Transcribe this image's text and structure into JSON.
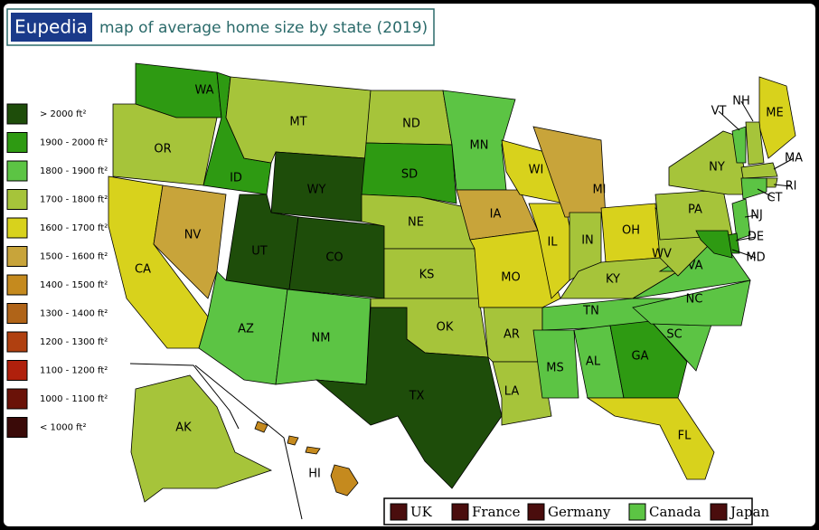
{
  "title": {
    "brand": "Eupedia",
    "text": "map of average home size by state (2019)"
  },
  "legend": [
    {
      "label": "> 2000 ft²",
      "color": "#1e4d0a"
    },
    {
      "label": "1900 - 2000 ft²",
      "color": "#2e9a12"
    },
    {
      "label": "1800 - 1900 ft²",
      "color": "#5cc444"
    },
    {
      "label": "1700 - 1800 ft²",
      "color": "#a6c43a"
    },
    {
      "label": "1600 - 1700 ft²",
      "color": "#d8d21c"
    },
    {
      "label": "1500 - 1600 ft²",
      "color": "#c8a43a"
    },
    {
      "label": "1400 - 1500 ft²",
      "color": "#c58a1e"
    },
    {
      "label": "1300 - 1400 ft²",
      "color": "#b06418"
    },
    {
      "label": "1200 - 1300 ft²",
      "color": "#b04010"
    },
    {
      "label": "1100 - 1200 ft²",
      "color": "#b0200c"
    },
    {
      "label": "1000 - 1100 ft²",
      "color": "#6a1208"
    },
    {
      "label": "< 1000 ft²",
      "color": "#3a0a08"
    }
  ],
  "countries": [
    {
      "label": "UK",
      "color": "#4a0d0d"
    },
    {
      "label": "France",
      "color": "#4a0d0d"
    },
    {
      "label": "Germany",
      "color": "#4a0d0d"
    },
    {
      "label": "Canada",
      "color": "#5cc444"
    },
    {
      "label": "Japan",
      "color": "#4a0d0d"
    }
  ],
  "states": [
    {
      "label": "WA",
      "color": "#2e9a12"
    },
    {
      "label": "OR",
      "color": "#a6c43a"
    },
    {
      "label": "CA",
      "color": "#d8d21c"
    },
    {
      "label": "NV",
      "color": "#c8a43a"
    },
    {
      "label": "ID",
      "color": "#2e9a12"
    },
    {
      "label": "MT",
      "color": "#a6c43a"
    },
    {
      "label": "WY",
      "color": "#1e4d0a"
    },
    {
      "label": "UT",
      "color": "#1e4d0a"
    },
    {
      "label": "CO",
      "color": "#1e4d0a"
    },
    {
      "label": "AZ",
      "color": "#5cc444"
    },
    {
      "label": "NM",
      "color": "#5cc444"
    },
    {
      "label": "ND",
      "color": "#a6c43a"
    },
    {
      "label": "SD",
      "color": "#2e9a12"
    },
    {
      "label": "NE",
      "color": "#a6c43a"
    },
    {
      "label": "KS",
      "color": "#a6c43a"
    },
    {
      "label": "OK",
      "color": "#a6c43a"
    },
    {
      "label": "TX",
      "color": "#1e4d0a"
    },
    {
      "label": "MN",
      "color": "#5cc444"
    },
    {
      "label": "IA",
      "color": "#c8a43a"
    },
    {
      "label": "MO",
      "color": "#d8d21c"
    },
    {
      "label": "AR",
      "color": "#a6c43a"
    },
    {
      "label": "LA",
      "color": "#a6c43a"
    },
    {
      "label": "WI",
      "color": "#d8d21c"
    },
    {
      "label": "IL",
      "color": "#d8d21c"
    },
    {
      "label": "MI",
      "color": "#c8a43a"
    },
    {
      "label": "IN",
      "color": "#a6c43a"
    },
    {
      "label": "OH",
      "color": "#d8d21c"
    },
    {
      "label": "KY",
      "color": "#a6c43a"
    },
    {
      "label": "TN",
      "color": "#5cc444"
    },
    {
      "label": "MS",
      "color": "#5cc444"
    },
    {
      "label": "AL",
      "color": "#5cc444"
    },
    {
      "label": "GA",
      "color": "#2e9a12"
    },
    {
      "label": "FL",
      "color": "#d8d21c"
    },
    {
      "label": "SC",
      "color": "#5cc444"
    },
    {
      "label": "NC",
      "color": "#5cc444"
    },
    {
      "label": "VA",
      "color": "#5cc444"
    },
    {
      "label": "WV",
      "color": "#a6c43a"
    },
    {
      "label": "PA",
      "color": "#a6c43a"
    },
    {
      "label": "NY",
      "color": "#a6c43a"
    },
    {
      "label": "ME",
      "color": "#d8d21c"
    },
    {
      "label": "VT",
      "color": "#5cc444"
    },
    {
      "label": "NH",
      "color": "#a6c43a"
    },
    {
      "label": "MA",
      "color": "#a6c43a"
    },
    {
      "label": "RI",
      "color": "#a6c43a"
    },
    {
      "label": "CT",
      "color": "#5cc444"
    },
    {
      "label": "NJ",
      "color": "#5cc444"
    },
    {
      "label": "DE",
      "color": "#2e9a12"
    },
    {
      "label": "MD",
      "color": "#2e9a12"
    },
    {
      "label": "AK",
      "color": "#a6c43a"
    },
    {
      "label": "HI",
      "color": "#c58a1e"
    }
  ]
}
